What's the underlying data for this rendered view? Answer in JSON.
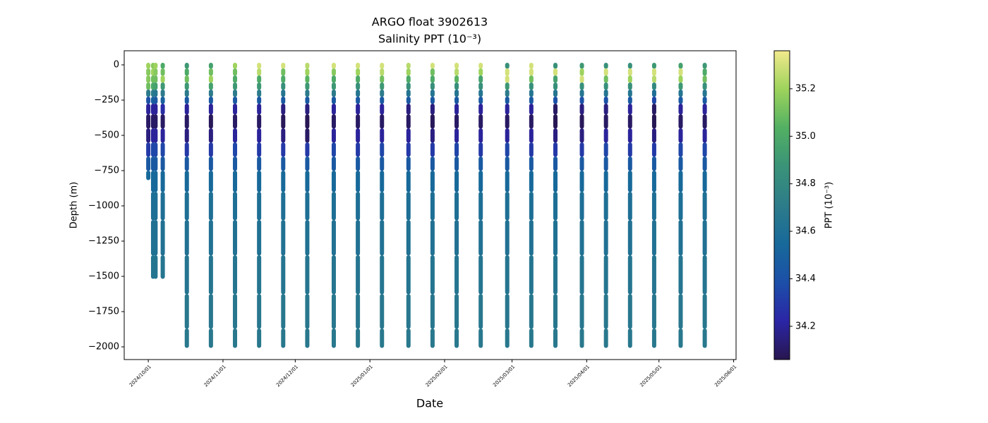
{
  "chart_data": {
    "type": "scatter",
    "title": "ARGO float 3902613",
    "subtitle": "Salinity PPT (10⁻³)",
    "x_label": "Date",
    "y_label": "Depth (m)",
    "colorbar_label": "PPT (10⁻³)",
    "xlim": [
      "2024-09-21",
      "2025-06-02"
    ],
    "xticks": [
      {
        "value": "2024-10-01",
        "label": "2024/10/01"
      },
      {
        "value": "2024-11-01",
        "label": "2024/11/01"
      },
      {
        "value": "2024-12-01",
        "label": "2024/12/01"
      },
      {
        "value": "2025-01-01",
        "label": "2025/01/01"
      },
      {
        "value": "2025-02-01",
        "label": "2025/02/01"
      },
      {
        "value": "2025-03-01",
        "label": "2025/03/01"
      },
      {
        "value": "2025-04-01",
        "label": "2025/04/01"
      },
      {
        "value": "2025-05-01",
        "label": "2025/05/01"
      },
      {
        "value": "2025-06-01",
        "label": "2025/06/01"
      }
    ],
    "ylim": [
      -2090,
      100
    ],
    "yticks": [
      0,
      {
        "value": -250,
        "label": "−250"
      },
      {
        "value": -500,
        "label": "−500"
      },
      {
        "value": -750,
        "label": "−750"
      },
      {
        "value": -1000,
        "label": "−1000"
      },
      {
        "value": -1250,
        "label": "−1250"
      },
      {
        "value": -1500,
        "label": "−1500"
      },
      {
        "value": -1750,
        "label": "−1750"
      },
      {
        "value": -2000,
        "label": "−2000"
      }
    ],
    "clim": [
      34.06,
      35.36
    ],
    "cticks": [
      34.2,
      34.4,
      34.6,
      34.8,
      {
        "value": 35,
        "label": "35.0"
      },
      35.2
    ],
    "colormap": [
      "#28164f",
      "#2b25a6",
      "#1c4fa8",
      "#17699a",
      "#2d7c8a",
      "#3a9378",
      "#52b063",
      "#9dd35c",
      "#f2e98c"
    ],
    "depth_levels": [
      0,
      -50,
      -100,
      -150,
      -200,
      -250,
      -300,
      -400,
      -500,
      -600,
      -700,
      -800,
      -1000,
      -1200,
      -1500,
      -1750,
      -1990
    ],
    "profiles": [
      {
        "x": "2024-10-01",
        "salinity": [
          35.2,
          35.15,
          35.15,
          35.1,
          34.7,
          34.4,
          34.2,
          34.1,
          34.15,
          34.3,
          34.45,
          34.55,
          null,
          null,
          null,
          null,
          null
        ]
      },
      {
        "x": "2024-10-03",
        "salinity": [
          35.15,
          35.2,
          35.1,
          35.0,
          34.7,
          34.5,
          34.2,
          34.1,
          34.2,
          34.35,
          34.45,
          34.55,
          34.6,
          34.62,
          34.65,
          null,
          null
        ]
      },
      {
        "x": "2024-10-04",
        "salinity": [
          35.2,
          35.15,
          35.1,
          34.95,
          34.65,
          34.45,
          34.2,
          34.1,
          34.2,
          34.35,
          34.45,
          34.55,
          34.6,
          34.62,
          34.65,
          null,
          null
        ]
      },
      {
        "x": "2024-10-07",
        "salinity": [
          35.0,
          35.1,
          35.2,
          34.9,
          34.7,
          34.5,
          34.25,
          34.1,
          34.2,
          34.35,
          34.45,
          34.55,
          34.6,
          34.62,
          34.65,
          null,
          null
        ]
      },
      {
        "x": "2024-10-17",
        "salinity": [
          34.9,
          35.0,
          35.1,
          34.9,
          34.7,
          34.45,
          34.2,
          34.1,
          34.15,
          34.3,
          34.45,
          34.55,
          34.6,
          34.62,
          34.65,
          34.67,
          34.68
        ]
      },
      {
        "x": "2024-10-27",
        "salinity": [
          34.95,
          35.1,
          35.2,
          34.95,
          34.7,
          34.45,
          34.2,
          34.08,
          34.15,
          34.3,
          34.45,
          34.55,
          34.6,
          34.62,
          34.65,
          34.67,
          34.68
        ]
      },
      {
        "x": "2024-11-06",
        "salinity": [
          35.2,
          35.1,
          35.0,
          34.9,
          34.7,
          34.45,
          34.2,
          34.1,
          34.2,
          34.35,
          34.45,
          34.55,
          34.6,
          34.62,
          34.65,
          34.67,
          34.68
        ]
      },
      {
        "x": "2024-11-16",
        "salinity": [
          35.3,
          35.25,
          35.0,
          34.9,
          34.7,
          34.45,
          34.2,
          34.1,
          34.2,
          34.3,
          34.45,
          34.55,
          34.6,
          34.62,
          34.65,
          34.67,
          34.68
        ]
      },
      {
        "x": "2024-11-26",
        "salinity": [
          35.3,
          35.1,
          35.0,
          34.85,
          34.65,
          34.45,
          34.15,
          34.08,
          34.15,
          34.3,
          34.45,
          34.55,
          34.6,
          34.62,
          34.65,
          34.67,
          34.68
        ]
      },
      {
        "x": "2024-12-06",
        "salinity": [
          35.25,
          35.2,
          35.05,
          34.9,
          34.7,
          34.45,
          34.15,
          34.07,
          34.1,
          34.3,
          34.45,
          34.55,
          34.6,
          34.62,
          34.65,
          34.67,
          34.68
        ]
      },
      {
        "x": "2024-12-17",
        "salinity": [
          35.3,
          35.15,
          35.0,
          34.9,
          34.7,
          34.45,
          34.2,
          34.1,
          34.2,
          34.35,
          34.45,
          34.55,
          34.6,
          34.62,
          34.65,
          34.67,
          34.68
        ]
      },
      {
        "x": "2024-12-27",
        "salinity": [
          35.3,
          35.2,
          35.0,
          34.85,
          34.65,
          34.45,
          34.2,
          34.1,
          34.2,
          34.3,
          34.45,
          34.55,
          34.6,
          34.62,
          34.65,
          34.67,
          34.68
        ]
      },
      {
        "x": "2025-01-06",
        "salinity": [
          35.3,
          35.25,
          35.1,
          34.9,
          34.7,
          34.45,
          34.2,
          34.1,
          34.2,
          34.35,
          34.45,
          34.55,
          34.6,
          34.62,
          34.65,
          34.67,
          34.68
        ]
      },
      {
        "x": "2025-01-17",
        "salinity": [
          35.25,
          35.2,
          35.0,
          34.85,
          34.65,
          34.45,
          34.15,
          34.1,
          34.2,
          34.3,
          34.45,
          34.55,
          34.6,
          34.62,
          34.65,
          34.67,
          34.68
        ]
      },
      {
        "x": "2025-01-27",
        "salinity": [
          35.3,
          35.1,
          35.0,
          34.85,
          34.65,
          34.45,
          34.15,
          34.08,
          34.15,
          34.3,
          34.45,
          34.55,
          34.6,
          34.62,
          34.65,
          34.67,
          34.68
        ]
      },
      {
        "x": "2025-02-06",
        "salinity": [
          35.3,
          35.25,
          35.05,
          34.85,
          34.65,
          34.45,
          34.2,
          34.1,
          34.2,
          34.35,
          34.45,
          34.55,
          34.6,
          34.62,
          34.65,
          34.67,
          34.68
        ]
      },
      {
        "x": "2025-02-16",
        "salinity": [
          35.3,
          35.2,
          34.95,
          34.85,
          34.65,
          34.45,
          34.2,
          34.1,
          34.2,
          34.3,
          34.45,
          34.55,
          34.6,
          34.62,
          34.65,
          34.67,
          34.68
        ]
      },
      {
        "x": "2025-02-27",
        "salinity": [
          34.85,
          35.3,
          35.3,
          34.9,
          34.7,
          34.45,
          34.2,
          34.1,
          34.2,
          34.35,
          34.45,
          34.55,
          34.6,
          34.62,
          34.65,
          34.67,
          34.68
        ]
      },
      {
        "x": "2025-03-09",
        "salinity": [
          35.3,
          35.3,
          35.1,
          34.85,
          34.65,
          34.45,
          34.2,
          34.1,
          34.2,
          34.3,
          34.45,
          34.55,
          34.6,
          34.62,
          34.65,
          34.67,
          34.68
        ]
      },
      {
        "x": "2025-03-19",
        "salinity": [
          34.85,
          35.3,
          34.95,
          34.85,
          34.65,
          34.4,
          34.1,
          34.07,
          34.15,
          34.3,
          34.45,
          34.55,
          34.6,
          34.62,
          34.65,
          34.67,
          34.68
        ]
      },
      {
        "x": "2025-03-30",
        "salinity": [
          34.9,
          35.2,
          35.3,
          34.85,
          34.65,
          34.4,
          34.15,
          34.08,
          34.15,
          34.3,
          34.45,
          34.55,
          34.6,
          34.62,
          34.65,
          34.67,
          34.68
        ]
      },
      {
        "x": "2025-04-09",
        "salinity": [
          34.85,
          35.3,
          35.1,
          34.85,
          34.65,
          34.4,
          34.15,
          34.1,
          34.2,
          34.35,
          34.45,
          34.55,
          34.6,
          34.62,
          34.65,
          34.67,
          34.68
        ]
      },
      {
        "x": "2025-04-19",
        "salinity": [
          34.85,
          35.3,
          35.2,
          34.85,
          34.65,
          34.45,
          34.2,
          34.1,
          34.2,
          34.3,
          34.45,
          34.55,
          34.6,
          34.62,
          34.65,
          34.67,
          34.68
        ]
      },
      {
        "x": "2025-04-29",
        "salinity": [
          34.9,
          35.3,
          35.25,
          34.8,
          34.6,
          34.35,
          34.1,
          34.07,
          34.15,
          34.3,
          34.45,
          34.55,
          34.6,
          34.62,
          34.65,
          34.67,
          34.68
        ]
      },
      {
        "x": "2025-05-10",
        "salinity": [
          34.95,
          35.3,
          35.2,
          34.9,
          34.65,
          34.45,
          34.2,
          34.1,
          34.2,
          34.35,
          34.45,
          34.55,
          34.6,
          34.62,
          34.65,
          34.67,
          34.68
        ]
      },
      {
        "x": "2025-05-20",
        "salinity": [
          34.9,
          35.0,
          35.1,
          34.85,
          34.65,
          34.45,
          34.2,
          34.1,
          34.2,
          34.35,
          34.45,
          34.55,
          34.6,
          34.62,
          34.65,
          34.67,
          34.68
        ]
      }
    ]
  }
}
